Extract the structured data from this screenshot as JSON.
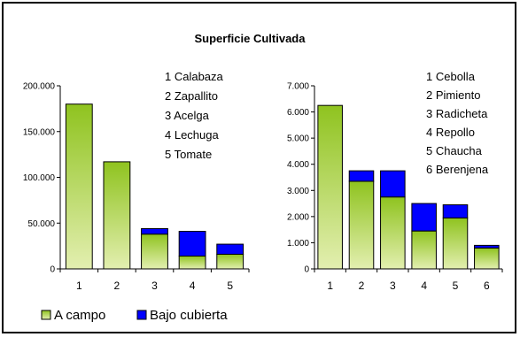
{
  "title": "Superficie Cultivada",
  "legend": {
    "position": "bottom-left",
    "items": [
      {
        "label": "A campo",
        "color": "#99cc33"
      },
      {
        "label": "Bajo cubierta",
        "color": "#0000ff"
      }
    ]
  },
  "colors": {
    "campo_top": "#8fc31f",
    "campo_bottom": "#e3efb0",
    "cubierta": "#0000ff"
  },
  "chart_data": [
    {
      "type": "bar",
      "stacked": true,
      "categories": [
        "1",
        "2",
        "3",
        "4",
        "5"
      ],
      "ylim": [
        0,
        200000
      ],
      "yticks": [
        0,
        50000,
        100000,
        150000,
        200000
      ],
      "ytick_labels": [
        "0",
        "50.000",
        "100.000",
        "150.000",
        "200.000"
      ],
      "series": [
        {
          "name": "A campo",
          "values": [
            180000,
            117000,
            38000,
            14000,
            16000
          ]
        },
        {
          "name": "Bajo cubierta",
          "values": [
            0,
            0,
            6000,
            27000,
            11000
          ]
        }
      ],
      "annotation": [
        "1 Calabaza",
        "2 Zapallito",
        "3 Acelga",
        "4 Lechuga",
        "5 Tomate"
      ]
    },
    {
      "type": "bar",
      "stacked": true,
      "categories": [
        "1",
        "2",
        "3",
        "4",
        "5",
        "6"
      ],
      "ylim": [
        0,
        7000
      ],
      "yticks": [
        0,
        1000,
        2000,
        3000,
        4000,
        5000,
        6000,
        7000
      ],
      "ytick_labels": [
        "0",
        "1.000",
        "2.000",
        "3.000",
        "4.000",
        "5.000",
        "6.000",
        "7.000"
      ],
      "series": [
        {
          "name": "A campo",
          "values": [
            6250,
            3350,
            2750,
            1450,
            1950,
            800
          ]
        },
        {
          "name": "Bajo cubierta",
          "values": [
            0,
            400,
            1000,
            1050,
            500,
            100
          ]
        }
      ],
      "annotation": [
        "1 Cebolla",
        "2 Pimiento",
        "3 Radicheta",
        "4 Repollo",
        "5 Chaucha",
        "6 Berenjena"
      ]
    }
  ]
}
